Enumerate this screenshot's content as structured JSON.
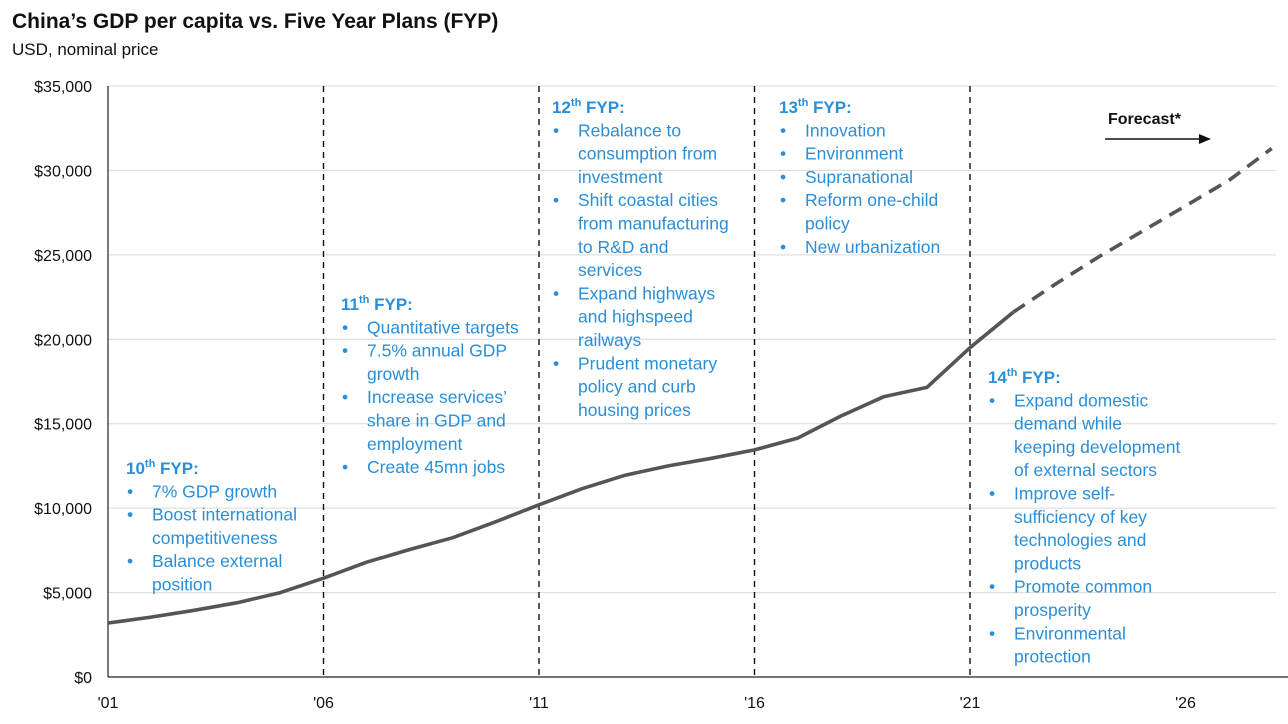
{
  "chart_data": {
    "type": "line",
    "title": "China’s GDP per capita vs. Five Year Plans (FYP)",
    "subtitle": "USD, nominal price",
    "xlabel": "",
    "ylabel": "",
    "xlim": [
      2001,
      2028
    ],
    "ylim": [
      0,
      35000
    ],
    "y_ticks": [
      0,
      5000,
      10000,
      15000,
      20000,
      25000,
      30000,
      35000
    ],
    "y_tick_labels": [
      "$0",
      "$5,000",
      "$10,000",
      "$15,000",
      "$20,000",
      "$25,000",
      "$30,000",
      "$35,000"
    ],
    "x_ticks": [
      2001,
      2006,
      2011,
      2016,
      2021,
      2026
    ],
    "x_tick_labels": [
      "'01",
      "'06",
      "'11",
      "'16",
      "'21",
      "'26"
    ],
    "grid": "horizontal",
    "series": [
      {
        "name": "",
        "style": "solid",
        "color": "#555555",
        "x": [
          2001,
          2002,
          2003,
          2004,
          2005,
          2006,
          2007,
          2008,
          2009,
          2010,
          2011,
          2012,
          2013,
          2014,
          2015,
          2016,
          2017,
          2018,
          2019,
          2020,
          2021,
          2022
        ],
        "values": [
          3200,
          3550,
          3950,
          4400,
          5000,
          5850,
          6800,
          7550,
          8250,
          9200,
          10200,
          11150,
          11950,
          12500,
          12950,
          13450,
          14150,
          15450,
          16600,
          17150,
          19500,
          21600
        ]
      },
      {
        "name": "Forecast*",
        "style": "dashed",
        "color": "#555555",
        "x": [
          2022,
          2023,
          2024,
          2025,
          2026,
          2027,
          2028
        ],
        "values": [
          21600,
          23300,
          24900,
          26400,
          27900,
          29400,
          31300
        ]
      }
    ],
    "plan_dividers": [
      2006,
      2011,
      2016,
      2021
    ],
    "forecast_label": "Forecast*",
    "annotations": [
      {
        "ord": "10",
        "sup": "th",
        "suffix": " FYP:",
        "bullets": [
          [
            "7% GDP growth"
          ],
          [
            "Boost international",
            "competitiveness"
          ],
          [
            "Balance external",
            "position"
          ]
        ]
      },
      {
        "ord": "11",
        "sup": "th",
        "suffix": " FYP:",
        "bullets": [
          [
            "Quantitative targets"
          ],
          [
            "7.5% annual GDP",
            "growth"
          ],
          [
            "Increase services’",
            "share in GDP and",
            "employment"
          ],
          [
            "Create 45mn jobs"
          ]
        ]
      },
      {
        "ord": "12",
        "sup": "th",
        "suffix": " FYP:",
        "bullets": [
          [
            "Rebalance to",
            "consumption from",
            "investment"
          ],
          [
            "Shift coastal cities",
            "from manufacturing",
            "to R&D and",
            "services"
          ],
          [
            "Expand highways",
            "and highspeed",
            "railways"
          ],
          [
            "Prudent monetary",
            "policy and curb",
            "housing prices"
          ]
        ]
      },
      {
        "ord": "13",
        "sup": "th",
        "suffix": " FYP:",
        "bullets": [
          [
            "Innovation"
          ],
          [
            "Environment"
          ],
          [
            "Supranational"
          ],
          [
            "Reform one-child",
            "policy"
          ],
          [
            "New urbanization"
          ]
        ]
      },
      {
        "ord": "14",
        "sup": "th",
        "suffix": " FYP:",
        "bullets": [
          [
            "Expand domestic",
            "demand while",
            "keeping development",
            "of external sectors"
          ],
          [
            "Improve self-",
            "sufficiency of key",
            "technologies and",
            "products"
          ],
          [
            "Promote common",
            "prosperity"
          ],
          [
            "Environmental",
            "protection"
          ]
        ]
      }
    ],
    "colors": {
      "line": "#555555",
      "annotation": "#2a8fd8",
      "grid": "#d9d9d9"
    }
  }
}
